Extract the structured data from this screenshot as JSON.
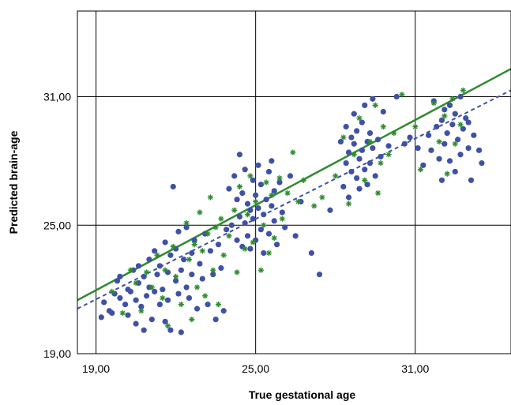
{
  "chart_data": {
    "type": "scatter",
    "title": "",
    "xlabel": "True gestational age",
    "ylabel": "Predicted brain-age",
    "xlim": [
      18.3,
      34.6
    ],
    "ylim": [
      19.0,
      35.0
    ],
    "x_ticks": [
      19,
      25,
      31
    ],
    "x_tick_labels": [
      "19,00",
      "25,00",
      "31,00"
    ],
    "y_ticks": [
      19,
      25,
      31
    ],
    "y_tick_labels": [
      "19,00",
      "25,00",
      "31,00"
    ],
    "grid": true,
    "legend": "none",
    "colors": {
      "blue": "#3f51a5",
      "green": "#2e8b2e",
      "grid": "#000000"
    },
    "series": [
      {
        "marker": "circle",
        "color": "#3f51a5",
        "points": [
          [
            19.2,
            20.7
          ],
          [
            19.3,
            21.4
          ],
          [
            19.5,
            21.0
          ],
          [
            19.6,
            20.9
          ],
          [
            19.7,
            21.8
          ],
          [
            19.8,
            22.4
          ],
          [
            19.9,
            21.6
          ],
          [
            19.9,
            22.6
          ],
          [
            20.1,
            21.3
          ],
          [
            20.2,
            22.0
          ],
          [
            20.2,
            20.8
          ],
          [
            20.3,
            21.9
          ],
          [
            20.4,
            22.9
          ],
          [
            20.5,
            20.4
          ],
          [
            20.5,
            21.5
          ],
          [
            20.6,
            22.3
          ],
          [
            20.6,
            23.1
          ],
          [
            20.7,
            21.2
          ],
          [
            20.8,
            22.6
          ],
          [
            20.8,
            20.1
          ],
          [
            20.9,
            21.7
          ],
          [
            21.0,
            23.4
          ],
          [
            21.0,
            22.1
          ],
          [
            21.1,
            20.6
          ],
          [
            21.2,
            21.9
          ],
          [
            21.2,
            23.8
          ],
          [
            21.3,
            22.7
          ],
          [
            21.4,
            21.3
          ],
          [
            21.4,
            23.1
          ],
          [
            21.5,
            22.0
          ],
          [
            21.6,
            20.5
          ],
          [
            21.6,
            24.2
          ],
          [
            21.7,
            22.8
          ],
          [
            21.7,
            21.5
          ],
          [
            21.8,
            23.6
          ],
          [
            21.8,
            20.1
          ],
          [
            21.9,
            26.8
          ],
          [
            22.0,
            22.4
          ],
          [
            22.0,
            23.9
          ],
          [
            22.1,
            21.8
          ],
          [
            22.1,
            24.7
          ],
          [
            22.2,
            22.9
          ],
          [
            22.2,
            20.0
          ],
          [
            22.3,
            23.4
          ],
          [
            22.4,
            22.1
          ],
          [
            22.4,
            24.9
          ],
          [
            22.5,
            21.6
          ],
          [
            22.6,
            23.7
          ],
          [
            22.6,
            22.7
          ],
          [
            22.7,
            24.3
          ],
          [
            22.8,
            21.1
          ],
          [
            22.9,
            23.2
          ],
          [
            23.0,
            22.5
          ],
          [
            23.1,
            24.6
          ],
          [
            23.2,
            21.3
          ],
          [
            23.3,
            23.8
          ],
          [
            23.4,
            22.7
          ],
          [
            23.5,
            20.6
          ],
          [
            23.6,
            24.1
          ],
          [
            23.7,
            23.0
          ],
          [
            23.8,
            21.0
          ],
          [
            23.9,
            24.8
          ],
          [
            24.0,
            26.7
          ],
          [
            24.1,
            25.0
          ],
          [
            24.2,
            27.3
          ],
          [
            24.3,
            24.3
          ],
          [
            24.3,
            26.2
          ],
          [
            24.4,
            25.4
          ],
          [
            24.4,
            28.3
          ],
          [
            24.5,
            24.0
          ],
          [
            24.5,
            26.5
          ],
          [
            24.6,
            25.1
          ],
          [
            24.6,
            27.6
          ],
          [
            24.7,
            24.5
          ],
          [
            24.7,
            26.0
          ],
          [
            24.8,
            25.7
          ],
          [
            24.8,
            23.9
          ],
          [
            24.9,
            27.1
          ],
          [
            24.9,
            25.3
          ],
          [
            25.0,
            24.3
          ],
          [
            25.0,
            26.4
          ],
          [
            25.1,
            25.8
          ],
          [
            25.1,
            27.8
          ],
          [
            25.2,
            24.8
          ],
          [
            25.2,
            26.9
          ],
          [
            25.3,
            25.5
          ],
          [
            25.3,
            23.7
          ],
          [
            25.4,
            26.2
          ],
          [
            25.5,
            24.6
          ],
          [
            25.5,
            27.5
          ],
          [
            25.6,
            25.9
          ],
          [
            25.6,
            28.0
          ],
          [
            25.7,
            25.2
          ],
          [
            25.7,
            26.6
          ],
          [
            25.8,
            24.1
          ],
          [
            25.9,
            27.0
          ],
          [
            26.0,
            25.6
          ],
          [
            26.1,
            24.9
          ],
          [
            26.3,
            27.3
          ],
          [
            26.5,
            24.5
          ],
          [
            26.7,
            26.1
          ],
          [
            27.1,
            23.7
          ],
          [
            27.4,
            22.7
          ],
          [
            27.8,
            25.7
          ],
          [
            28.2,
            28.9
          ],
          [
            28.3,
            26.8
          ],
          [
            28.4,
            27.9
          ],
          [
            28.4,
            29.6
          ],
          [
            28.5,
            28.4
          ],
          [
            28.5,
            26.3
          ],
          [
            28.6,
            29.1
          ],
          [
            28.6,
            27.5
          ],
          [
            28.7,
            28.8
          ],
          [
            28.7,
            30.2
          ],
          [
            28.8,
            27.2
          ],
          [
            28.8,
            29.4
          ],
          [
            28.9,
            28.1
          ],
          [
            28.9,
            26.7
          ],
          [
            29.0,
            29.8
          ],
          [
            29.0,
            28.5
          ],
          [
            29.1,
            27.6
          ],
          [
            29.1,
            30.6
          ],
          [
            29.2,
            28.9
          ],
          [
            29.2,
            26.9
          ],
          [
            29.3,
            29.3
          ],
          [
            29.3,
            27.9
          ],
          [
            29.4,
            28.6
          ],
          [
            29.4,
            30.9
          ],
          [
            29.5,
            27.3
          ],
          [
            29.6,
            29.0
          ],
          [
            29.7,
            28.2
          ],
          [
            29.8,
            30.3
          ],
          [
            30.0,
            28.7
          ],
          [
            30.3,
            31.0
          ],
          [
            30.6,
            28.8
          ],
          [
            30.8,
            29.1
          ],
          [
            31.1,
            28.6
          ],
          [
            31.3,
            27.8
          ],
          [
            31.5,
            29.2
          ],
          [
            31.6,
            28.5
          ],
          [
            31.7,
            30.8
          ],
          [
            31.8,
            29.6
          ],
          [
            31.9,
            28.1
          ],
          [
            32.0,
            29.9
          ],
          [
            32.0,
            27.1
          ],
          [
            32.1,
            30.4
          ],
          [
            32.1,
            28.8
          ],
          [
            32.2,
            29.3
          ],
          [
            32.3,
            30.6
          ],
          [
            32.3,
            28.0
          ],
          [
            32.4,
            29.7
          ],
          [
            32.5,
            27.5
          ],
          [
            32.5,
            30.2
          ],
          [
            32.6,
            29.0
          ],
          [
            32.7,
            31.0
          ],
          [
            32.7,
            28.3
          ],
          [
            32.8,
            29.5
          ],
          [
            32.9,
            30.0
          ],
          [
            33.0,
            28.6
          ],
          [
            33.0,
            29.8
          ],
          [
            33.1,
            27.1
          ],
          [
            33.2,
            29.2
          ],
          [
            33.4,
            28.5
          ],
          [
            33.5,
            27.9
          ]
        ]
      },
      {
        "marker": "asterisk",
        "color": "#2e8b2e",
        "points": [
          [
            19.6,
            21.9
          ],
          [
            20.0,
            20.9
          ],
          [
            20.3,
            22.9
          ],
          [
            20.5,
            22.3
          ],
          [
            20.7,
            21.0
          ],
          [
            20.9,
            22.8
          ],
          [
            21.1,
            22.1
          ],
          [
            21.3,
            23.6
          ],
          [
            21.5,
            21.6
          ],
          [
            21.6,
            22.9
          ],
          [
            21.7,
            20.3
          ],
          [
            21.9,
            24.0
          ],
          [
            22.0,
            22.6
          ],
          [
            22.2,
            21.3
          ],
          [
            22.4,
            25.1
          ],
          [
            22.5,
            23.4
          ],
          [
            22.6,
            20.6
          ],
          [
            22.7,
            24.1
          ],
          [
            22.8,
            22.1
          ],
          [
            22.9,
            25.6
          ],
          [
            23.0,
            23.8
          ],
          [
            23.1,
            21.7
          ],
          [
            23.2,
            24.6
          ],
          [
            23.3,
            26.3
          ],
          [
            23.4,
            22.9
          ],
          [
            23.5,
            24.9
          ],
          [
            23.6,
            21.3
          ],
          [
            23.7,
            25.3
          ],
          [
            23.8,
            23.6
          ],
          [
            24.0,
            24.5
          ],
          [
            24.2,
            25.7
          ],
          [
            24.3,
            22.8
          ],
          [
            24.4,
            26.8
          ],
          [
            24.6,
            23.9
          ],
          [
            24.7,
            25.5
          ],
          [
            24.8,
            27.3
          ],
          [
            24.9,
            24.2
          ],
          [
            25.0,
            26.1
          ],
          [
            25.2,
            22.9
          ],
          [
            25.3,
            25.0
          ],
          [
            25.4,
            27.0
          ],
          [
            25.5,
            23.7
          ],
          [
            25.6,
            26.4
          ],
          [
            25.7,
            24.4
          ],
          [
            25.9,
            27.2
          ],
          [
            26.0,
            25.3
          ],
          [
            26.2,
            26.5
          ],
          [
            26.4,
            28.4
          ],
          [
            26.6,
            26.1
          ],
          [
            26.8,
            27.1
          ],
          [
            27.2,
            25.9
          ],
          [
            27.5,
            26.3
          ],
          [
            28.0,
            27.3
          ],
          [
            28.3,
            29.1
          ],
          [
            28.5,
            26.0
          ],
          [
            28.7,
            28.3
          ],
          [
            28.9,
            30.0
          ],
          [
            29.1,
            27.1
          ],
          [
            29.3,
            28.9
          ],
          [
            29.5,
            30.6
          ],
          [
            29.6,
            26.5
          ],
          [
            29.7,
            27.9
          ],
          [
            29.8,
            29.6
          ],
          [
            30.0,
            28.3
          ],
          [
            30.2,
            29.3
          ],
          [
            30.5,
            31.1
          ],
          [
            31.0,
            29.6
          ],
          [
            31.2,
            27.6
          ],
          [
            31.7,
            30.7
          ],
          [
            31.9,
            28.9
          ],
          [
            32.1,
            30.1
          ],
          [
            32.2,
            27.4
          ],
          [
            32.4,
            30.9
          ],
          [
            32.5,
            28.8
          ],
          [
            32.7,
            29.7
          ],
          [
            32.8,
            31.3
          ]
        ]
      }
    ],
    "lines": [
      {
        "style": "solid",
        "color": "#2e8b2e",
        "x": [
          18.3,
          34.6
        ],
        "y": [
          21.5,
          32.3
        ]
      },
      {
        "style": "dashed",
        "color": "#3f51a5",
        "x": [
          18.3,
          34.6
        ],
        "y": [
          21.1,
          31.3
        ]
      }
    ]
  }
}
